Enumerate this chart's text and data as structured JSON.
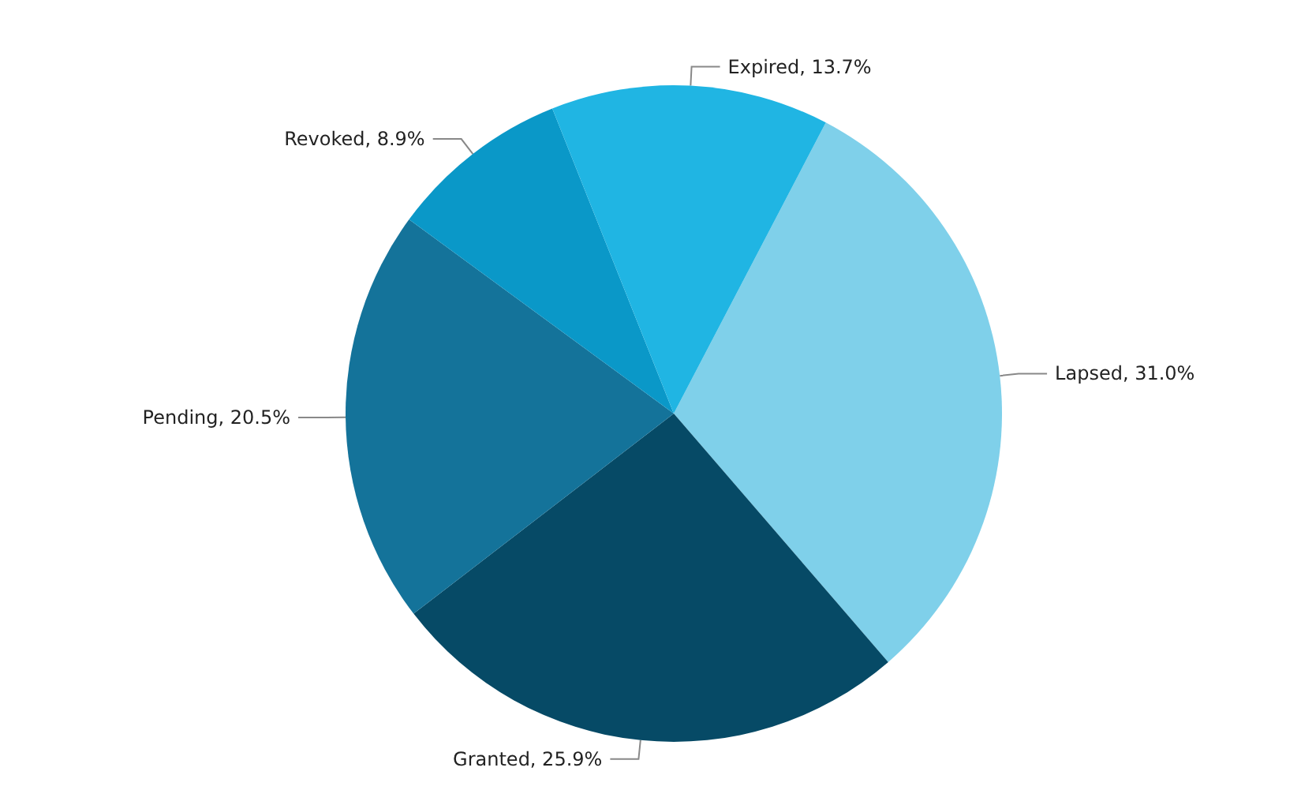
{
  "chart_data": {
    "type": "pie",
    "categories": [
      "Lapsed",
      "Granted",
      "Pending",
      "Revoked",
      "Expired"
    ],
    "values": [
      31.0,
      25.9,
      20.5,
      8.9,
      13.7
    ],
    "value_labels": [
      "31.0%",
      "25.9%",
      "20.5%",
      "8.9%",
      "13.7%"
    ],
    "colors": [
      "#7fd0ea",
      "#064a66",
      "#14739a",
      "#0a98c8",
      "#20b5e3"
    ],
    "legend": false
  }
}
